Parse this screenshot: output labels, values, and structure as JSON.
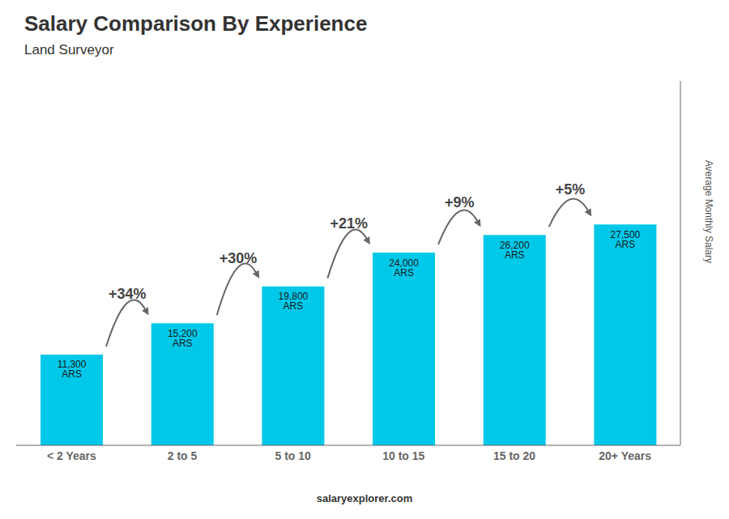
{
  "chart_data": {
    "type": "bar",
    "title": "Salary Comparison By Experience",
    "subtitle": "Land Surveyor",
    "categories": [
      "< 2 Years",
      "2 to 5",
      "5 to 10",
      "10 to 15",
      "15 to 20",
      "20+ Years"
    ],
    "values": [
      11300,
      15200,
      19800,
      24000,
      26200,
      27500
    ],
    "value_labels": [
      "11,300 ARS",
      "15,200 ARS",
      "19,800 ARS",
      "24,000 ARS",
      "26,200 ARS",
      "27,500 ARS"
    ],
    "data_labels": true,
    "annotations": [
      "+34%",
      "+30%",
      "+21%",
      "+9%",
      "+5%"
    ],
    "color": "#00c8e8",
    "ylabel": "Average Monthly Salary",
    "ylim": [
      0,
      45375
    ],
    "tick_labels": "x",
    "grid": false,
    "footer": "salaryexplorer.com"
  }
}
